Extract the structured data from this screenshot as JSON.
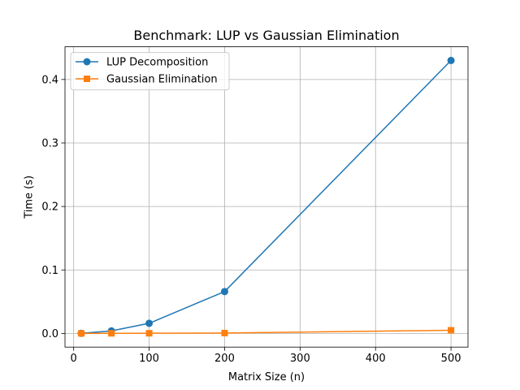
{
  "chart_data": {
    "type": "line",
    "title": "Benchmark: LUP vs Gaussian Elimination",
    "xlabel": "Matrix Size (n)",
    "ylabel": "Time (s)",
    "xlim": [
      -11.5,
      522.5
    ],
    "ylim": [
      -0.0215,
      0.4515
    ],
    "xticks": [
      0,
      100,
      200,
      300,
      400,
      500
    ],
    "xtick_labels": [
      "0",
      "100",
      "200",
      "300",
      "400",
      "500"
    ],
    "yticks": [
      0.0,
      0.1,
      0.2,
      0.3,
      0.4
    ],
    "ytick_labels": [
      "0.0",
      "0.1",
      "0.2",
      "0.3",
      "0.4"
    ],
    "grid": true,
    "legend_position": "upper-left",
    "series": [
      {
        "name": "LUP Decomposition",
        "color": "#1f77b4",
        "marker": "circle",
        "x": [
          10,
          50,
          100,
          200,
          500
        ],
        "y": [
          0.0002,
          0.004,
          0.016,
          0.066,
          0.43
        ]
      },
      {
        "name": "Gaussian Elimination",
        "color": "#ff7f0e",
        "marker": "square",
        "x": [
          10,
          50,
          100,
          200,
          500
        ],
        "y": [
          0.0001,
          0.0002,
          0.0003,
          0.0006,
          0.005
        ]
      }
    ]
  }
}
